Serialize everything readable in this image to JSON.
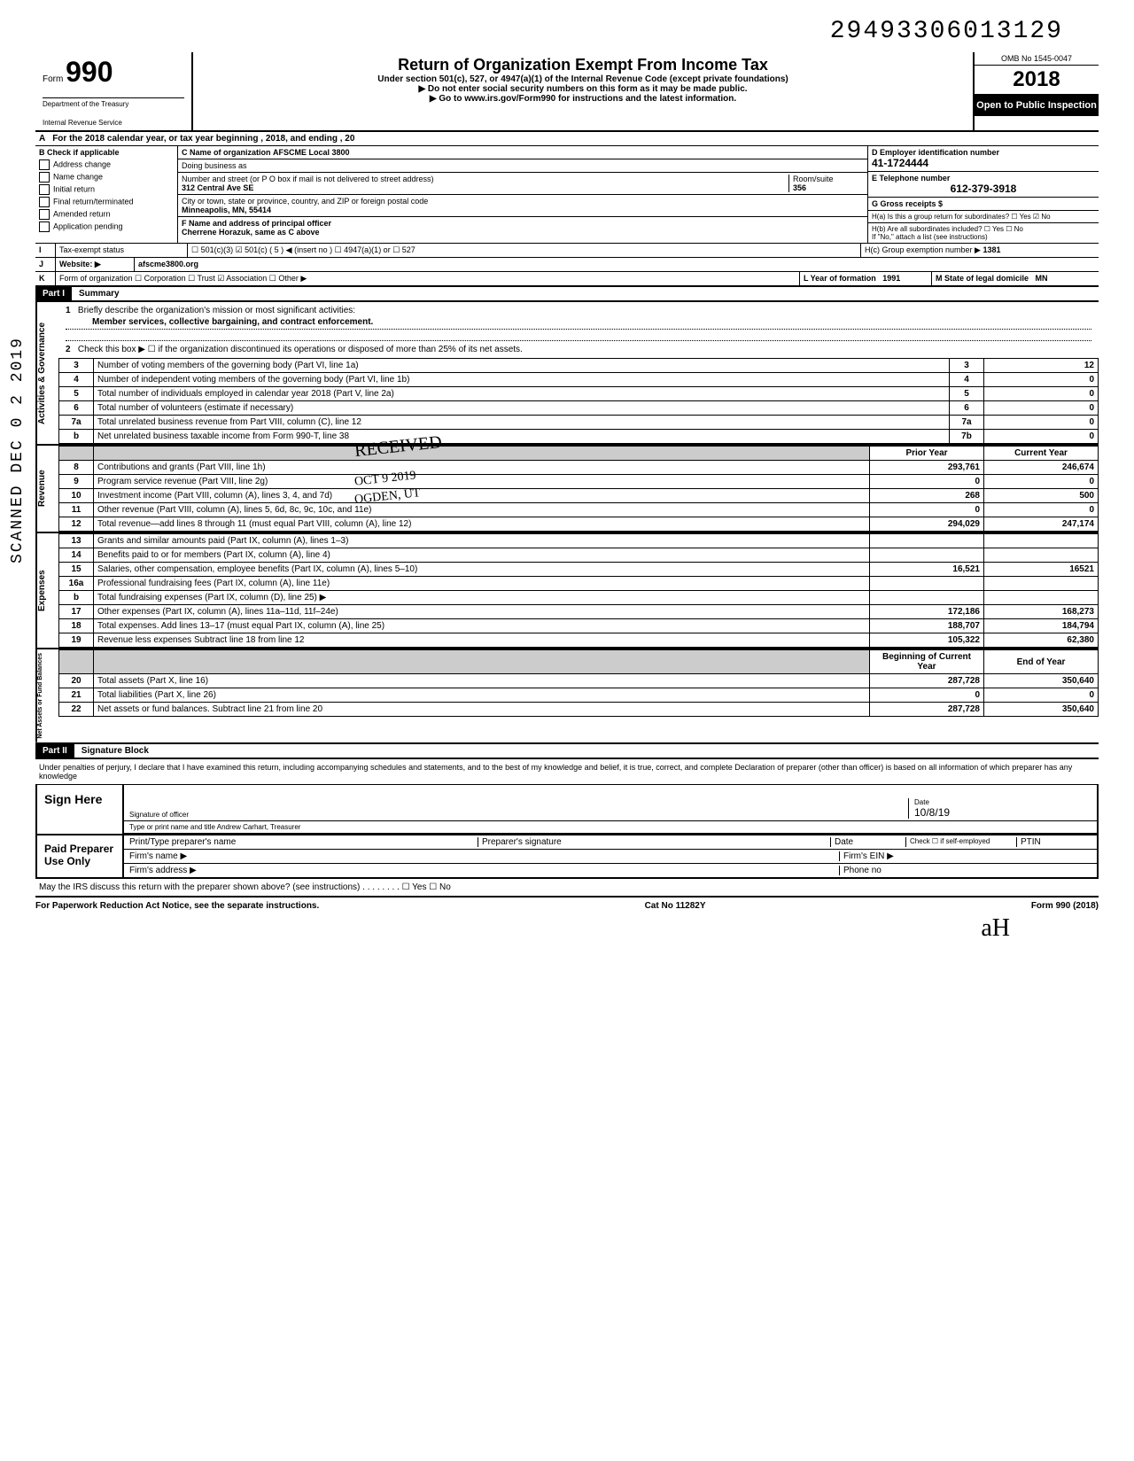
{
  "doc_id": "29493306013129",
  "header": {
    "form_prefix": "Form",
    "form_number": "990",
    "title": "Return of Organization Exempt From Income Tax",
    "subtitle": "Under section 501(c), 527, or 4947(a)(1) of the Internal Revenue Code (except private foundations)",
    "note1": "▶ Do not enter social security numbers on this form as it may be made public.",
    "note2": "▶ Go to www.irs.gov/Form990 for instructions and the latest information.",
    "dept1": "Department of the Treasury",
    "dept2": "Internal Revenue Service",
    "omb": "OMB No 1545-0047",
    "year": "2018",
    "open": "Open to Public Inspection"
  },
  "rowA": "For the 2018 calendar year, or tax year beginning                                              , 2018, and ending                                       , 20",
  "colB": {
    "header": "Check if applicable",
    "opts": [
      "Address change",
      "Name change",
      "Initial return",
      "Final return/terminated",
      "Amended return",
      "Application pending"
    ]
  },
  "org": {
    "c_label": "C Name of organization",
    "c_value": "AFSCME Local 3800",
    "dba": "Doing business as",
    "addr_label": "Number and street (or P O box if mail is not delivered to street address)",
    "addr": "312 Central Ave SE",
    "room_label": "Room/suite",
    "room": "356",
    "city_label": "City or town, state or province, country, and ZIP or foreign postal code",
    "city": "Minneapolis, MN, 55414",
    "f_label": "F Name and address of principal officer",
    "f_value": "Cherrene Horazuk, same as C above"
  },
  "colDE": {
    "d_label": "D Employer identification number",
    "d_value": "41-1724444",
    "e_label": "E Telephone number",
    "e_value": "612-379-3918",
    "g_label": "G Gross receipts $",
    "ha": "H(a) Is this a group return for subordinates?  ☐ Yes  ☑ No",
    "hb": "H(b) Are all subordinates included? ☐ Yes  ☐ No",
    "hb2": "If \"No,\" attach a list (see instructions)",
    "hc_label": "H(c) Group exemption number ▶",
    "hc_value": "1381"
  },
  "rowI": {
    "label": "Tax-exempt status",
    "opts": "☐ 501(c)(3)   ☑ 501(c) (   5   ) ◀ (insert no )  ☐ 4947(a)(1) or   ☐ 527"
  },
  "rowJ": {
    "label": "Website: ▶",
    "value": "afscme3800.org"
  },
  "rowK": {
    "label": "Form of organization ☐ Corporation  ☐ Trust  ☑ Association  ☐ Other ▶",
    "year_label": "L Year of formation",
    "year": "1991",
    "state_label": "M State of legal domicile",
    "state": "MN"
  },
  "partI": {
    "hdr": "Part I",
    "title": "Summary"
  },
  "summary": {
    "line1_label": "Briefly describe the organization's mission or most significant activities:",
    "line1_value": "Member services, collective bargaining, and contract enforcement.",
    "line2": "Check this box ▶ ☐ if the organization discontinued its operations or disposed of more than 25% of its net assets.",
    "rows": [
      {
        "n": "3",
        "d": "Number of voting members of the governing body (Part VI, line 1a)",
        "b": "3",
        "v": "12"
      },
      {
        "n": "4",
        "d": "Number of independent voting members of the governing body (Part VI, line 1b)",
        "b": "4",
        "v": "0"
      },
      {
        "n": "5",
        "d": "Total number of individuals employed in calendar year 2018 (Part V, line 2a)",
        "b": "5",
        "v": "0"
      },
      {
        "n": "6",
        "d": "Total number of volunteers (estimate if necessary)",
        "b": "6",
        "v": "0"
      },
      {
        "n": "7a",
        "d": "Total unrelated business revenue from Part VIII, column (C), line 12",
        "b": "7a",
        "v": "0"
      },
      {
        "n": "b",
        "d": "Net unrelated business taxable income from Form 990-T, line 38",
        "b": "7b",
        "v": "0"
      }
    ]
  },
  "revenue": {
    "hdr_prior": "Prior Year",
    "hdr_current": "Current Year",
    "rows": [
      {
        "n": "8",
        "d": "Contributions and grants (Part VIII, line 1h)",
        "p": "293,761",
        "c": "246,674"
      },
      {
        "n": "9",
        "d": "Program service revenue (Part VIII, line 2g)",
        "p": "0",
        "c": "0"
      },
      {
        "n": "10",
        "d": "Investment income (Part VIII, column (A), lines 3, 4, and 7d)",
        "p": "268",
        "c": "500"
      },
      {
        "n": "11",
        "d": "Other revenue (Part VIII, column (A), lines 5, 6d, 8c, 9c, 10c, and 11e)",
        "p": "0",
        "c": "0"
      },
      {
        "n": "12",
        "d": "Total revenue—add lines 8 through 11 (must equal Part VIII, column (A), line 12)",
        "p": "294,029",
        "c": "247,174"
      }
    ]
  },
  "expenses": {
    "rows": [
      {
        "n": "13",
        "d": "Grants and similar amounts paid (Part IX, column (A), lines 1–3)",
        "p": "",
        "c": ""
      },
      {
        "n": "14",
        "d": "Benefits paid to or for members (Part IX, column (A), line 4)",
        "p": "",
        "c": ""
      },
      {
        "n": "15",
        "d": "Salaries, other compensation, employee benefits (Part IX, column (A), lines 5–10)",
        "p": "16,521",
        "c": "16521"
      },
      {
        "n": "16a",
        "d": "Professional fundraising fees (Part IX, column (A), line 11e)",
        "p": "",
        "c": ""
      },
      {
        "n": "b",
        "d": "Total fundraising expenses (Part IX, column (D), line 25) ▶",
        "p": "",
        "c": ""
      },
      {
        "n": "17",
        "d": "Other expenses (Part IX, column (A), lines 11a–11d, 11f–24e)",
        "p": "172,186",
        "c": "168,273"
      },
      {
        "n": "18",
        "d": "Total expenses. Add lines 13–17 (must equal Part IX, column (A), line 25)",
        "p": "188,707",
        "c": "184,794"
      },
      {
        "n": "19",
        "d": "Revenue less expenses Subtract line 18 from line 12",
        "p": "105,322",
        "c": "62,380"
      }
    ]
  },
  "netassets": {
    "hdr_begin": "Beginning of Current Year",
    "hdr_end": "End of Year",
    "rows": [
      {
        "n": "20",
        "d": "Total assets (Part X, line 16)",
        "p": "287,728",
        "c": "350,640"
      },
      {
        "n": "21",
        "d": "Total liabilities (Part X, line 26)",
        "p": "0",
        "c": "0"
      },
      {
        "n": "22",
        "d": "Net assets or fund balances. Subtract line 21 from line 20",
        "p": "287,728",
        "c": "350,640"
      }
    ]
  },
  "partII": {
    "hdr": "Part II",
    "title": "Signature Block"
  },
  "perjury": "Under penalties of perjury, I declare that I have examined this return, including accompanying schedules and statements, and to the best of my knowledge and belief, it is true, correct, and complete Declaration of preparer (other than officer) is based on all information of which preparer has any knowledge",
  "sign": {
    "here": "Sign Here",
    "sig_label": "Signature of officer",
    "date_label": "Date",
    "date": "10/8/19",
    "name_label": "Type or print name and title",
    "name": "Andrew Carhart, Treasurer"
  },
  "paid": {
    "label": "Paid Preparer Use Only",
    "prep_name": "Print/Type preparer's name",
    "prep_sig": "Preparer's signature",
    "date": "Date",
    "check": "Check ☐ if self-employed",
    "ptin": "PTIN",
    "firm": "Firm's name  ▶",
    "ein": "Firm's EIN ▶",
    "addr": "Firm's address ▶",
    "phone": "Phone no"
  },
  "discuss": "May the IRS discuss this return with the preparer shown above? (see instructions)    .    .    .    .    .    .    .    .    ☐ Yes ☐ No",
  "footer": {
    "left": "For Paperwork Reduction Act Notice, see the separate instructions.",
    "mid": "Cat No 11282Y",
    "right": "Form 990 (2018)"
  },
  "scanned": "SCANNED DEC 0 2 2019",
  "stamp1": "RECEIVED",
  "stamp2": "OGDEN, UT",
  "stamp3": "OCT 9 2019"
}
